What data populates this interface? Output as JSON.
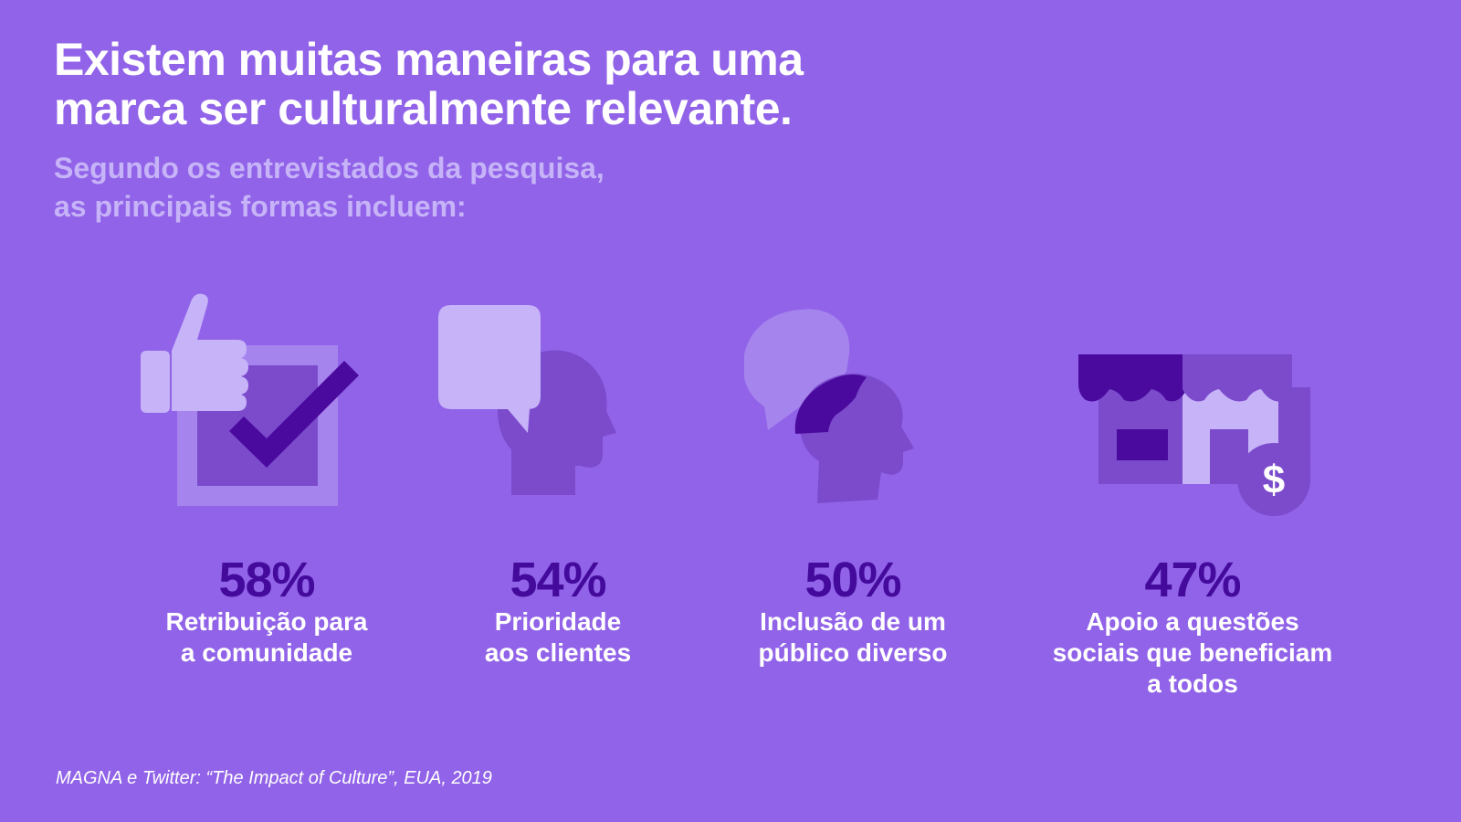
{
  "title": {
    "line1": "Existem muitas maneiras para uma",
    "line2": "marca ser culturalmente relevante."
  },
  "subtitle": {
    "line1": "Segundo os entrevistados da pesquisa,",
    "line2": "as principais formas incluem:"
  },
  "colors": {
    "background": "#9163e8",
    "title": "#ffffff",
    "subtitle": "#c6b3f8",
    "percent": "#430a9c",
    "label": "#ffffff"
  },
  "stats": [
    {
      "icon": "thumbs-up-checkbox-icon",
      "value": "58%",
      "label_line1": "Retribuição para",
      "label_line2": "a comunidade",
      "label_line3": ""
    },
    {
      "icon": "speech-bubble-head-icon",
      "value": "54%",
      "label_line1": "Prioridade",
      "label_line2": "aos clientes",
      "label_line3": ""
    },
    {
      "icon": "diverse-heads-icon",
      "value": "50%",
      "label_line1": "Inclusão de um",
      "label_line2": "público diverso",
      "label_line3": ""
    },
    {
      "icon": "storefront-dollar-icon",
      "value": "47%",
      "label_line1": "Apoio a questões",
      "label_line2": "sociais que beneficiam",
      "label_line3": "a todos"
    }
  ],
  "footnote": "MAGNA e Twitter: “The Impact of Culture”, EUA, 2019"
}
